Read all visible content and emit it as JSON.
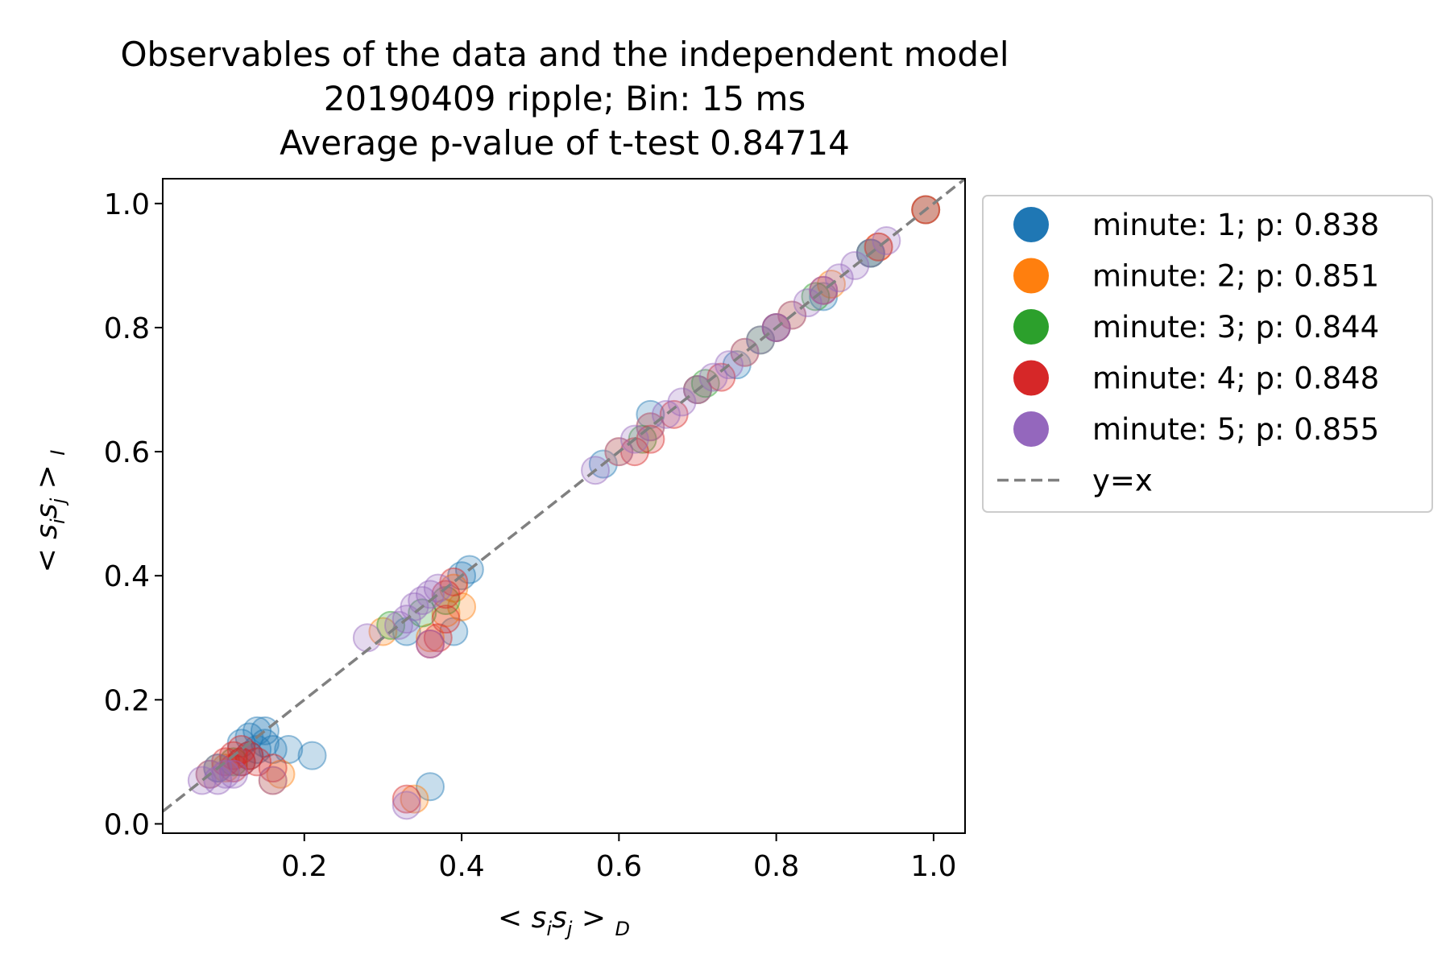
{
  "chart_data": {
    "type": "scatter",
    "title": "Observables of the data and the independent model",
    "subtitle": "20190409 ripple; Bin: 15 ms",
    "subtitle2": "Average p-value of t-test 0.84714",
    "xlabel": "< s_i s_j >_D",
    "ylabel": "< s_i s_j >_I",
    "xlim": [
      0.02,
      1.04
    ],
    "ylim": [
      -0.015,
      1.04
    ],
    "xticks": [
      0.2,
      0.4,
      0.6,
      0.8,
      1.0
    ],
    "xtick_labels": [
      "0.2",
      "0.4",
      "0.6",
      "0.8",
      "1.0"
    ],
    "yticks": [
      0.0,
      0.2,
      0.4,
      0.6,
      0.8,
      1.0
    ],
    "ytick_labels": [
      "0.0",
      "0.2",
      "0.4",
      "0.6",
      "0.8",
      "1.0"
    ],
    "grid": false,
    "legend_placement": "outside-right-top",
    "reference_line": {
      "label": "y=x",
      "color": "#808080",
      "style": "dashed"
    },
    "series": [
      {
        "name": "minute: 1; p: 0.838",
        "color": "#1f77b4",
        "points": [
          [
            0.12,
            0.13
          ],
          [
            0.13,
            0.14
          ],
          [
            0.14,
            0.15
          ],
          [
            0.15,
            0.15
          ],
          [
            0.15,
            0.13
          ],
          [
            0.16,
            0.12
          ],
          [
            0.14,
            0.12
          ],
          [
            0.13,
            0.11
          ],
          [
            0.18,
            0.12
          ],
          [
            0.21,
            0.11
          ],
          [
            0.12,
            0.1
          ],
          [
            0.36,
            0.06
          ],
          [
            0.33,
            0.31
          ],
          [
            0.39,
            0.31
          ],
          [
            0.41,
            0.41
          ],
          [
            0.4,
            0.4
          ],
          [
            0.58,
            0.58
          ],
          [
            0.64,
            0.66
          ],
          [
            0.7,
            0.7
          ],
          [
            0.75,
            0.74
          ],
          [
            0.8,
            0.8
          ],
          [
            0.86,
            0.85
          ],
          [
            0.92,
            0.92
          ],
          [
            0.99,
            0.99
          ]
        ]
      },
      {
        "name": "minute: 2; p: 0.851",
        "color": "#ff7f0e",
        "points": [
          [
            0.08,
            0.08
          ],
          [
            0.1,
            0.09
          ],
          [
            0.17,
            0.08
          ],
          [
            0.16,
            0.07
          ],
          [
            0.3,
            0.31
          ],
          [
            0.34,
            0.04
          ],
          [
            0.36,
            0.3
          ],
          [
            0.38,
            0.34
          ],
          [
            0.4,
            0.35
          ],
          [
            0.39,
            0.38
          ],
          [
            0.6,
            0.6
          ],
          [
            0.64,
            0.64
          ],
          [
            0.7,
            0.7
          ],
          [
            0.76,
            0.76
          ],
          [
            0.82,
            0.82
          ],
          [
            0.87,
            0.87
          ],
          [
            0.93,
            0.93
          ],
          [
            0.99,
            0.99
          ]
        ]
      },
      {
        "name": "minute: 3; p: 0.844",
        "color": "#2ca02c",
        "points": [
          [
            0.09,
            0.09
          ],
          [
            0.11,
            0.1
          ],
          [
            0.31,
            0.32
          ],
          [
            0.35,
            0.34
          ],
          [
            0.38,
            0.36
          ],
          [
            0.63,
            0.62
          ],
          [
            0.71,
            0.71
          ],
          [
            0.78,
            0.78
          ],
          [
            0.85,
            0.85
          ],
          [
            0.92,
            0.92
          ]
        ]
      },
      {
        "name": "minute: 4; p: 0.848",
        "color": "#d62728",
        "points": [
          [
            0.1,
            0.1
          ],
          [
            0.11,
            0.11
          ],
          [
            0.12,
            0.12
          ],
          [
            0.12,
            0.1
          ],
          [
            0.13,
            0.11
          ],
          [
            0.11,
            0.09
          ],
          [
            0.14,
            0.1
          ],
          [
            0.16,
            0.09
          ],
          [
            0.33,
            0.04
          ],
          [
            0.36,
            0.29
          ],
          [
            0.37,
            0.3
          ],
          [
            0.38,
            0.33
          ],
          [
            0.39,
            0.39
          ],
          [
            0.38,
            0.37
          ],
          [
            0.62,
            0.6
          ],
          [
            0.64,
            0.62
          ],
          [
            0.67,
            0.66
          ],
          [
            0.73,
            0.72
          ],
          [
            0.8,
            0.8
          ],
          [
            0.86,
            0.86
          ],
          [
            0.93,
            0.93
          ],
          [
            0.99,
            0.99
          ]
        ]
      },
      {
        "name": "minute: 5; p: 0.855",
        "color": "#9467bd",
        "points": [
          [
            0.07,
            0.07
          ],
          [
            0.08,
            0.08
          ],
          [
            0.09,
            0.09
          ],
          [
            0.1,
            0.08
          ],
          [
            0.09,
            0.07
          ],
          [
            0.11,
            0.08
          ],
          [
            0.16,
            0.07
          ],
          [
            0.28,
            0.3
          ],
          [
            0.32,
            0.32
          ],
          [
            0.33,
            0.33
          ],
          [
            0.34,
            0.35
          ],
          [
            0.35,
            0.36
          ],
          [
            0.36,
            0.37
          ],
          [
            0.37,
            0.38
          ],
          [
            0.33,
            0.03
          ],
          [
            0.36,
            0.29
          ],
          [
            0.57,
            0.57
          ],
          [
            0.6,
            0.6
          ],
          [
            0.62,
            0.62
          ],
          [
            0.64,
            0.64
          ],
          [
            0.66,
            0.66
          ],
          [
            0.68,
            0.68
          ],
          [
            0.7,
            0.7
          ],
          [
            0.72,
            0.72
          ],
          [
            0.74,
            0.74
          ],
          [
            0.76,
            0.76
          ],
          [
            0.78,
            0.78
          ],
          [
            0.8,
            0.8
          ],
          [
            0.82,
            0.82
          ],
          [
            0.84,
            0.84
          ],
          [
            0.86,
            0.86
          ],
          [
            0.88,
            0.88
          ],
          [
            0.9,
            0.9
          ],
          [
            0.92,
            0.92
          ],
          [
            0.94,
            0.94
          ]
        ]
      }
    ]
  }
}
